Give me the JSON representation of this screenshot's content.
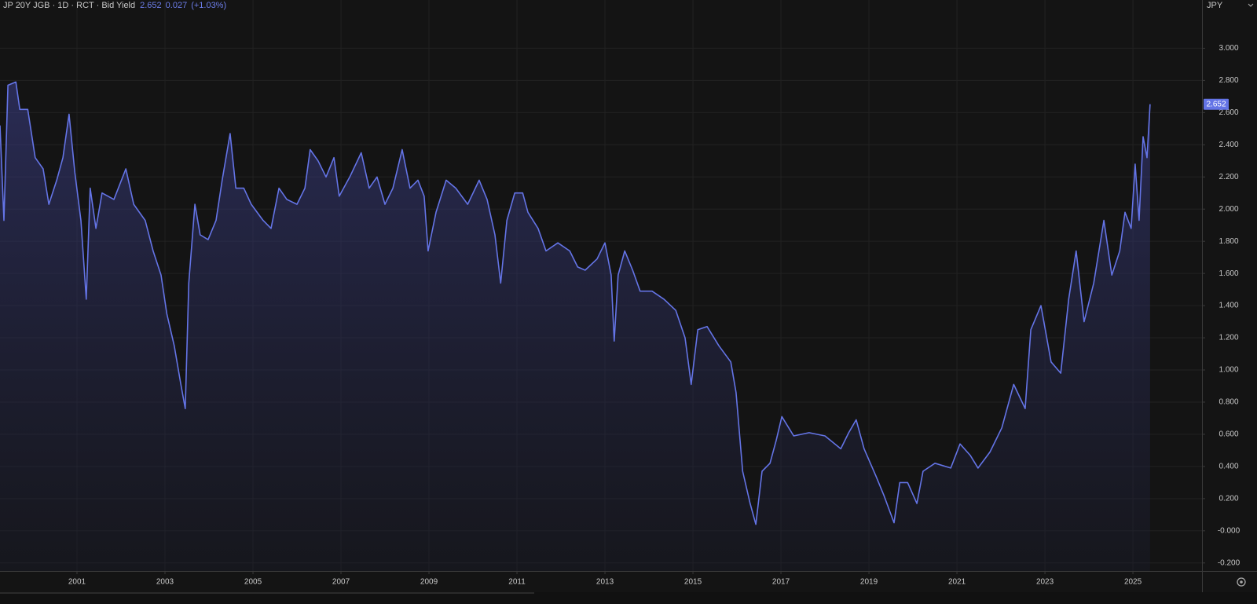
{
  "chart_data": {
    "type": "line",
    "title": "JP 20Y JGB · 1D · RCT · Bid Yield",
    "legend_value": 2.652,
    "change": 0.027,
    "change_label": "(+1.03%)",
    "currency": "JPY",
    "color": "#6474e6",
    "grid": true,
    "xlim": [
      1999.25,
      2026.57
    ],
    "ylim": [
      -0.25,
      3.3
    ],
    "xticks": [
      2001,
      2003,
      2005,
      2007,
      2009,
      2011,
      2013,
      2015,
      2017,
      2019,
      2021,
      2023,
      2025
    ],
    "yticks": [
      {
        "value": 3.0,
        "label": "3.000"
      },
      {
        "value": 2.8,
        "label": "2.800"
      },
      {
        "value": 2.6,
        "label": "2.600"
      },
      {
        "value": 2.4,
        "label": "2.400"
      },
      {
        "value": 2.2,
        "label": "2.200"
      },
      {
        "value": 2.0,
        "label": "2.000"
      },
      {
        "value": 1.8,
        "label": "1.800"
      },
      {
        "value": 1.6,
        "label": "1.600"
      },
      {
        "value": 1.4,
        "label": "1.400"
      },
      {
        "value": 1.2,
        "label": "1.200"
      },
      {
        "value": 1.0,
        "label": "1.000"
      },
      {
        "value": 0.8,
        "label": "0.800"
      },
      {
        "value": 0.6,
        "label": "0.600"
      },
      {
        "value": 0.4,
        "label": "0.400"
      },
      {
        "value": 0.2,
        "label": "0.200"
      },
      {
        "value": 0,
        "label": "-0.000"
      },
      {
        "value": -0.2,
        "label": "-0.200"
      }
    ],
    "x": [
      1999.25,
      1999.34,
      1999.43,
      1999.61,
      1999.7,
      1999.88,
      2000.05,
      2000.23,
      2000.36,
      2000.54,
      2000.68,
      2000.82,
      2000.95,
      2001.09,
      2001.21,
      2001.3,
      2001.43,
      2001.57,
      2001.84,
      2002.11,
      2002.29,
      2002.55,
      2002.73,
      2002.91,
      2003.04,
      2003.21,
      2003.36,
      2003.46,
      2003.54,
      2003.68,
      2003.8,
      2003.98,
      2004.16,
      2004.3,
      2004.48,
      2004.61,
      2004.79,
      2004.96,
      2005.23,
      2005.41,
      2005.59,
      2005.77,
      2006.0,
      2006.18,
      2006.3,
      2006.48,
      2006.66,
      2006.84,
      2006.96,
      2007.2,
      2007.46,
      2007.64,
      2007.82,
      2008.0,
      2008.18,
      2008.39,
      2008.57,
      2008.75,
      2008.89,
      2008.98,
      2009.16,
      2009.39,
      2009.61,
      2009.88,
      2010.14,
      2010.32,
      2010.5,
      2010.63,
      2010.77,
      2010.95,
      2011.13,
      2011.25,
      2011.48,
      2011.66,
      2011.93,
      2012.2,
      2012.38,
      2012.55,
      2012.82,
      2013.0,
      2013.14,
      2013.21,
      2013.3,
      2013.45,
      2013.63,
      2013.8,
      2014.07,
      2014.34,
      2014.61,
      2014.82,
      2014.96,
      2015.11,
      2015.32,
      2015.59,
      2015.86,
      2015.98,
      2016.13,
      2016.3,
      2016.43,
      2016.57,
      2016.75,
      2016.89,
      2017.02,
      2017.29,
      2017.64,
      2018.0,
      2018.36,
      2018.54,
      2018.71,
      2018.89,
      2019.16,
      2019.34,
      2019.57,
      2019.7,
      2019.88,
      2020.09,
      2020.23,
      2020.5,
      2020.86,
      2021.07,
      2021.3,
      2021.48,
      2021.75,
      2022.02,
      2022.29,
      2022.55,
      2022.68,
      2022.91,
      2023.14,
      2023.36,
      2023.54,
      2023.71,
      2023.89,
      2024.11,
      2024.34,
      2024.52,
      2024.7,
      2024.82,
      2024.96,
      2025.05,
      2025.14,
      2025.23,
      2025.32,
      2025.39
    ],
    "values": [
      2.52,
      1.93,
      2.77,
      2.79,
      2.62,
      2.62,
      2.32,
      2.25,
      2.03,
      2.18,
      2.32,
      2.59,
      2.23,
      1.93,
      1.44,
      2.13,
      1.88,
      2.1,
      2.06,
      2.25,
      2.03,
      1.93,
      1.74,
      1.59,
      1.35,
      1.15,
      0.91,
      0.76,
      1.54,
      2.03,
      1.84,
      1.81,
      1.93,
      2.18,
      2.47,
      2.13,
      2.13,
      2.03,
      1.93,
      1.88,
      2.13,
      2.06,
      2.03,
      2.13,
      2.37,
      2.3,
      2.2,
      2.32,
      2.08,
      2.2,
      2.35,
      2.13,
      2.2,
      2.03,
      2.13,
      2.37,
      2.13,
      2.18,
      2.08,
      1.74,
      1.98,
      2.18,
      2.13,
      2.03,
      2.18,
      2.06,
      1.84,
      1.54,
      1.93,
      2.1,
      2.1,
      1.98,
      1.88,
      1.74,
      1.79,
      1.74,
      1.64,
      1.62,
      1.69,
      1.79,
      1.59,
      1.18,
      1.59,
      1.74,
      1.62,
      1.49,
      1.49,
      1.44,
      1.37,
      1.2,
      0.91,
      1.25,
      1.27,
      1.15,
      1.05,
      0.86,
      0.37,
      0.17,
      0.04,
      0.37,
      0.42,
      0.56,
      0.71,
      0.59,
      0.61,
      0.59,
      0.51,
      0.61,
      0.69,
      0.51,
      0.34,
      0.22,
      0.05,
      0.3,
      0.3,
      0.17,
      0.37,
      0.42,
      0.39,
      0.54,
      0.47,
      0.39,
      0.49,
      0.64,
      0.91,
      0.76,
      1.25,
      1.4,
      1.05,
      0.98,
      1.44,
      1.74,
      1.3,
      1.54,
      1.93,
      1.59,
      1.74,
      1.98,
      1.88,
      2.28,
      1.93,
      2.45,
      2.32,
      2.652
    ]
  }
}
